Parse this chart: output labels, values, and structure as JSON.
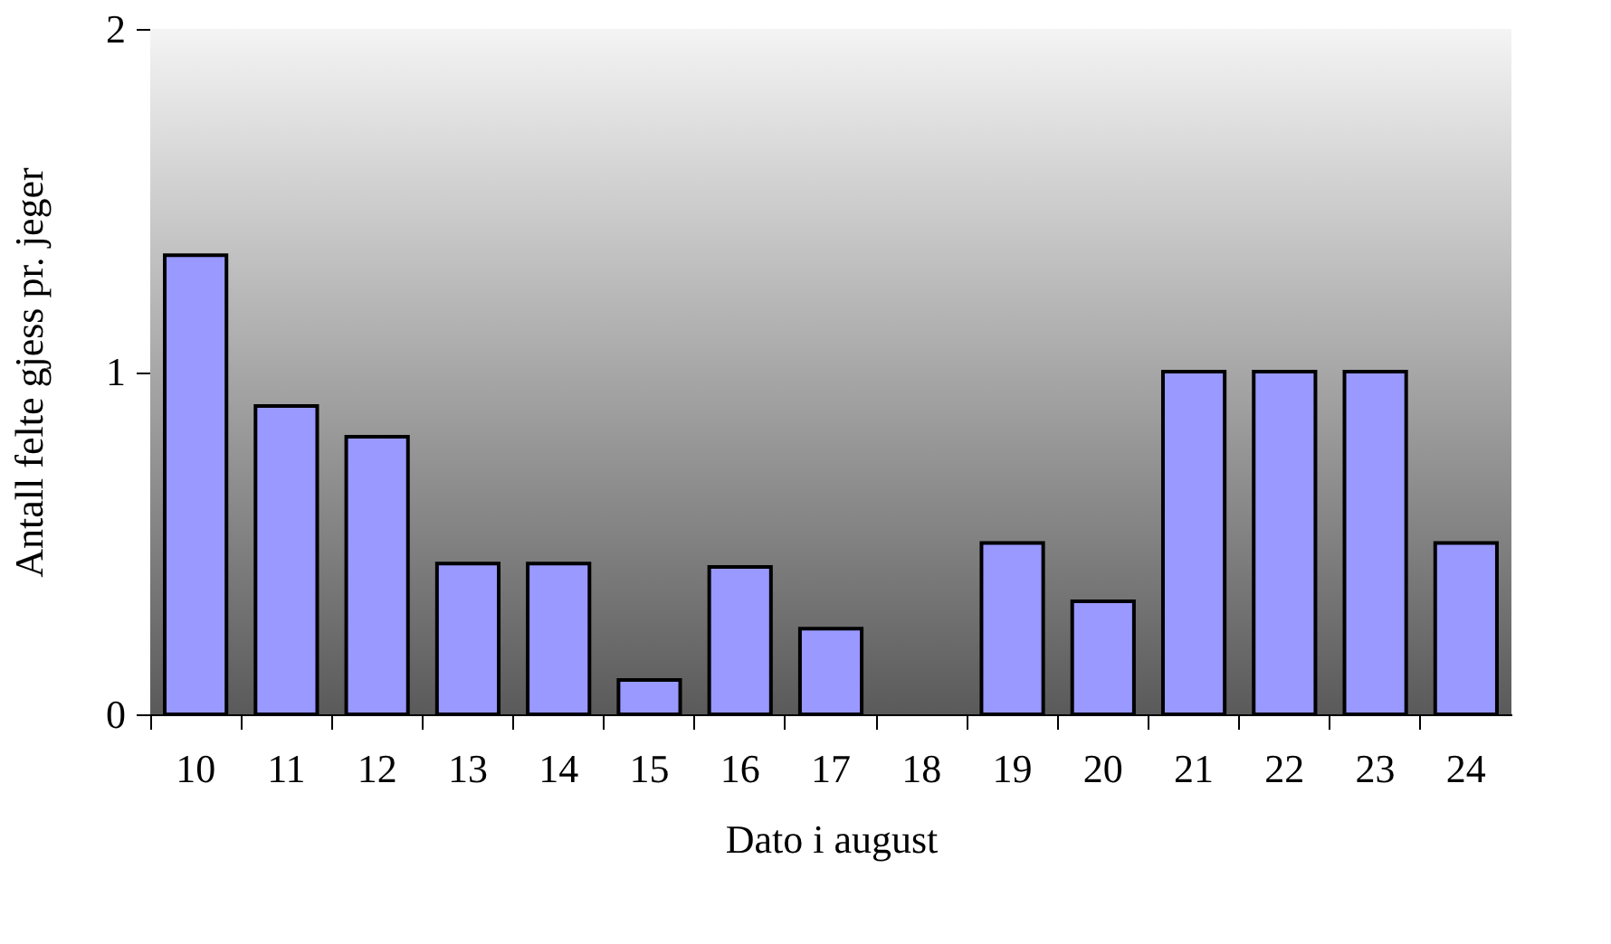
{
  "chart_data": {
    "type": "bar",
    "xlabel": "Dato i august",
    "ylabel": "Antall felte gjess pr. jeger",
    "categories": [
      "10",
      "11",
      "12",
      "13",
      "14",
      "15",
      "16",
      "17",
      "18",
      "19",
      "20",
      "21",
      "22",
      "23",
      "24"
    ],
    "values": [
      1.34,
      0.9,
      0.81,
      0.44,
      0.44,
      0.1,
      0.43,
      0.25,
      null,
      0.5,
      0.33,
      1,
      1,
      1,
      0.5
    ],
    "color": "#9999ff",
    "ylim": [
      0,
      2
    ],
    "yticks": [
      0,
      1,
      2
    ]
  }
}
